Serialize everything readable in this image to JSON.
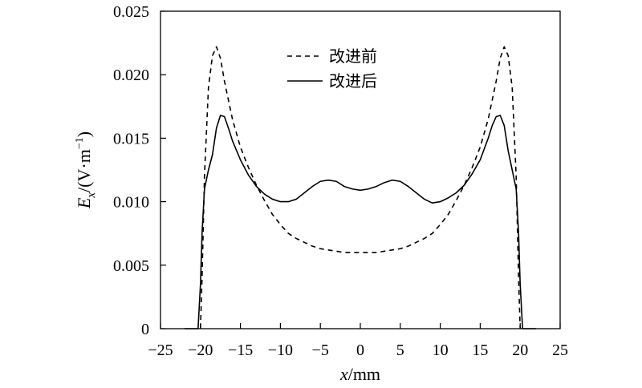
{
  "chart_data": {
    "type": "line",
    "xlabel": "x/mm",
    "ylabel": "Ex/(V·m−1)",
    "xlim": [
      -25,
      25
    ],
    "ylim": [
      0,
      0.025
    ],
    "x_ticks": [
      "−25",
      "−20",
      "−15",
      "−10",
      "−5",
      "0",
      "5",
      "10",
      "15",
      "20",
      "25"
    ],
    "y_ticks": [
      "0",
      "0.005",
      "0.010",
      "0.015",
      "0.020",
      "0.025"
    ],
    "grid": false,
    "legend_position": "top-center",
    "series": [
      {
        "name": "改进前",
        "style": "dashed",
        "color": "#000000",
        "x": [
          -20,
          -19.8,
          -19.5,
          -19,
          -18.5,
          -18,
          -17.5,
          -17,
          -16,
          -15,
          -14,
          -13,
          -12,
          -11,
          -10,
          -9,
          -8,
          -7,
          -6,
          -5,
          -4,
          -3,
          -2,
          -1,
          0,
          1,
          2,
          3,
          4,
          5,
          6,
          7,
          8,
          9,
          10,
          11,
          12,
          13,
          14,
          15,
          16,
          17,
          17.5,
          18,
          18.5,
          19,
          19.5,
          19.8,
          20
        ],
        "y": [
          0,
          0.004,
          0.012,
          0.019,
          0.0215,
          0.0222,
          0.0213,
          0.0195,
          0.0165,
          0.0143,
          0.0127,
          0.0113,
          0.0101,
          0.009,
          0.0082,
          0.0075,
          0.0071,
          0.0068,
          0.0065,
          0.0063,
          0.0062,
          0.0061,
          0.006,
          0.006,
          0.006,
          0.006,
          0.006,
          0.0061,
          0.0062,
          0.0063,
          0.0065,
          0.0068,
          0.0071,
          0.0075,
          0.0082,
          0.009,
          0.0101,
          0.0113,
          0.0127,
          0.0143,
          0.0165,
          0.0195,
          0.0213,
          0.0222,
          0.0215,
          0.019,
          0.012,
          0.004,
          0
        ]
      },
      {
        "name": "改进后",
        "style": "solid",
        "color": "#000000",
        "x": [
          -22,
          -20.3,
          -20,
          -19.8,
          -19.5,
          -19,
          -18.5,
          -18,
          -17.5,
          -17,
          -16.5,
          -16,
          -15,
          -14,
          -13,
          -12,
          -11,
          -10,
          -9,
          -8,
          -7,
          -6,
          -5,
          -4,
          -3,
          -2,
          -1,
          0,
          1,
          2,
          3,
          4,
          5,
          6,
          7,
          8,
          9,
          10,
          11,
          12,
          13,
          14,
          15,
          16,
          16.5,
          17,
          17.5,
          18,
          18.5,
          19,
          19.5,
          19.8,
          20,
          20.3,
          22
        ],
        "y": [
          0,
          0,
          0.0035,
          0.0075,
          0.011,
          0.0125,
          0.0137,
          0.0158,
          0.0168,
          0.0167,
          0.0158,
          0.0148,
          0.0133,
          0.0121,
          0.0112,
          0.0106,
          0.0102,
          0.01,
          0.01,
          0.0102,
          0.0107,
          0.0112,
          0.0116,
          0.0117,
          0.0116,
          0.0112,
          0.011,
          0.0109,
          0.011,
          0.0112,
          0.0115,
          0.0117,
          0.0116,
          0.0112,
          0.0107,
          0.0102,
          0.0099,
          0.01,
          0.0103,
          0.0107,
          0.0113,
          0.0122,
          0.0133,
          0.015,
          0.016,
          0.0167,
          0.0168,
          0.016,
          0.014,
          0.0125,
          0.011,
          0.0075,
          0.0035,
          0,
          0
        ]
      }
    ]
  }
}
